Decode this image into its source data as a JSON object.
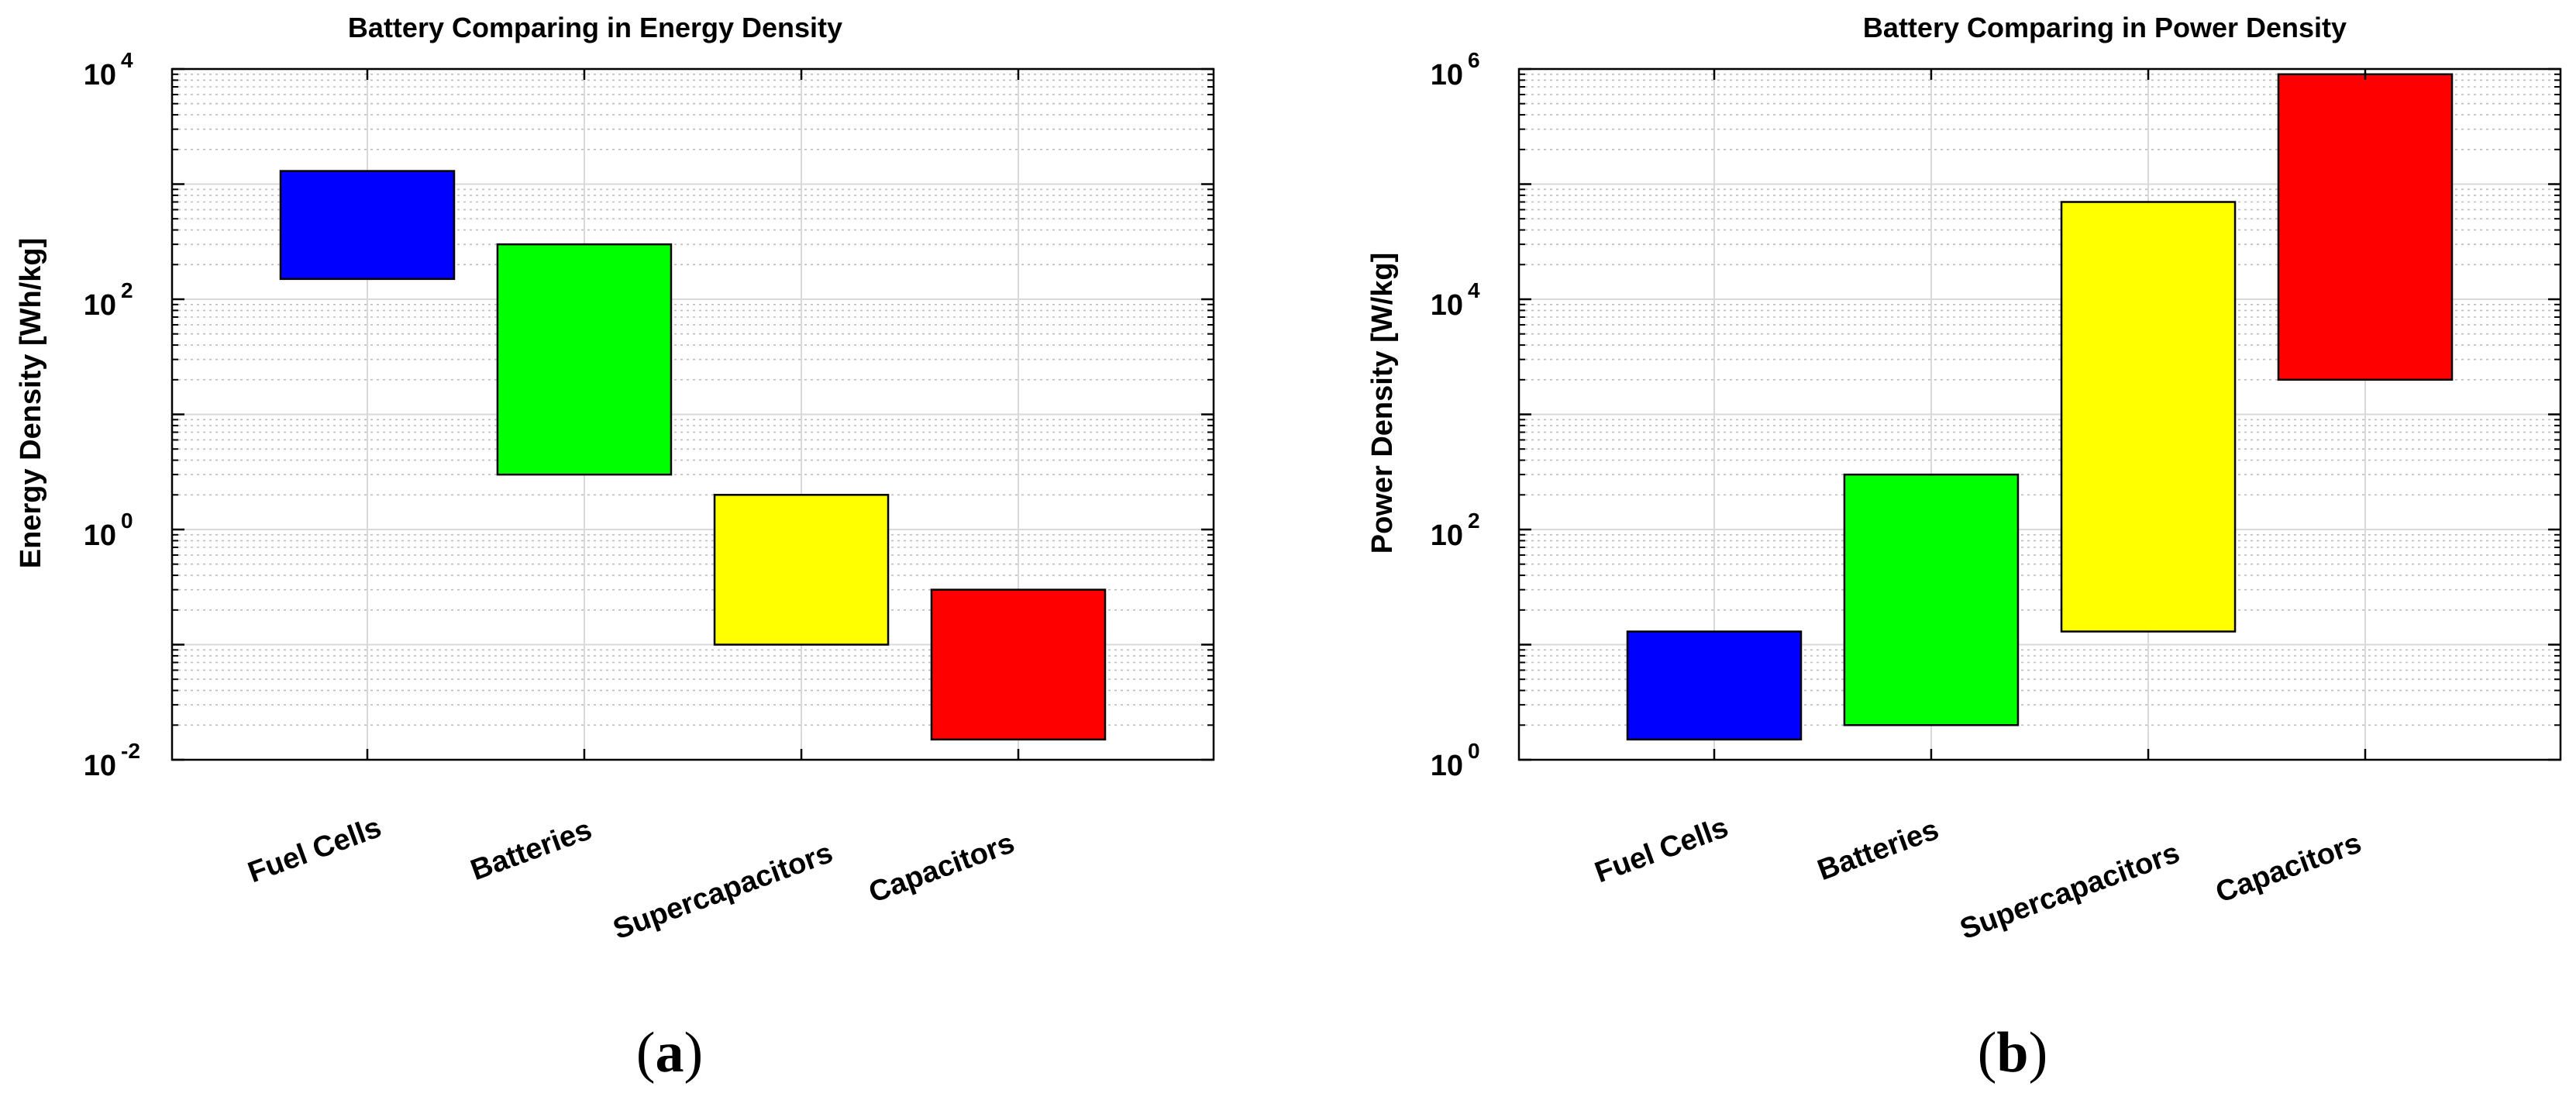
{
  "chart_data": [
    {
      "type": "bar",
      "subtype": "floating-range",
      "title": "Battery Comparing in Energy Density",
      "ylabel": "Energy Density [Wh/kg]",
      "xlabel": "",
      "yscale": "log",
      "ylim": [
        0.01,
        10000
      ],
      "yticks": [
        {
          "base": "10",
          "exp": "-2"
        },
        {
          "base": "10",
          "exp": "0"
        },
        {
          "base": "10",
          "exp": "2"
        },
        {
          "base": "10",
          "exp": "4"
        }
      ],
      "grid": true,
      "categories": [
        "Fuel Cells",
        "Batteries",
        "Supercapacitors",
        "Capacitors"
      ],
      "ranges": [
        [
          150,
          1300
        ],
        [
          3,
          300
        ],
        [
          0.1,
          2
        ],
        [
          0.015,
          0.3
        ]
      ],
      "colors": [
        "#0000ff",
        "#00ff00",
        "#ffff00",
        "#ff0000"
      ],
      "panel_label": "a"
    },
    {
      "type": "bar",
      "subtype": "floating-range",
      "title": "Battery Comparing in Power Density",
      "ylabel": "Power Density [W/kg]",
      "xlabel": "",
      "yscale": "log",
      "ylim": [
        1,
        1000000
      ],
      "yticks": [
        {
          "base": "10",
          "exp": "0"
        },
        {
          "base": "10",
          "exp": "2"
        },
        {
          "base": "10",
          "exp": "4"
        },
        {
          "base": "10",
          "exp": "6"
        }
      ],
      "grid": true,
      "categories": [
        "Fuel Cells",
        "Batteries",
        "Supercapacitors",
        "Capacitors"
      ],
      "ranges": [
        [
          1.5,
          13
        ],
        [
          2,
          300
        ],
        [
          13,
          70000
        ],
        [
          2000,
          900000
        ]
      ],
      "colors": [
        "#0000ff",
        "#00ff00",
        "#ffff00",
        "#ff0000"
      ],
      "panel_label": "b"
    }
  ]
}
